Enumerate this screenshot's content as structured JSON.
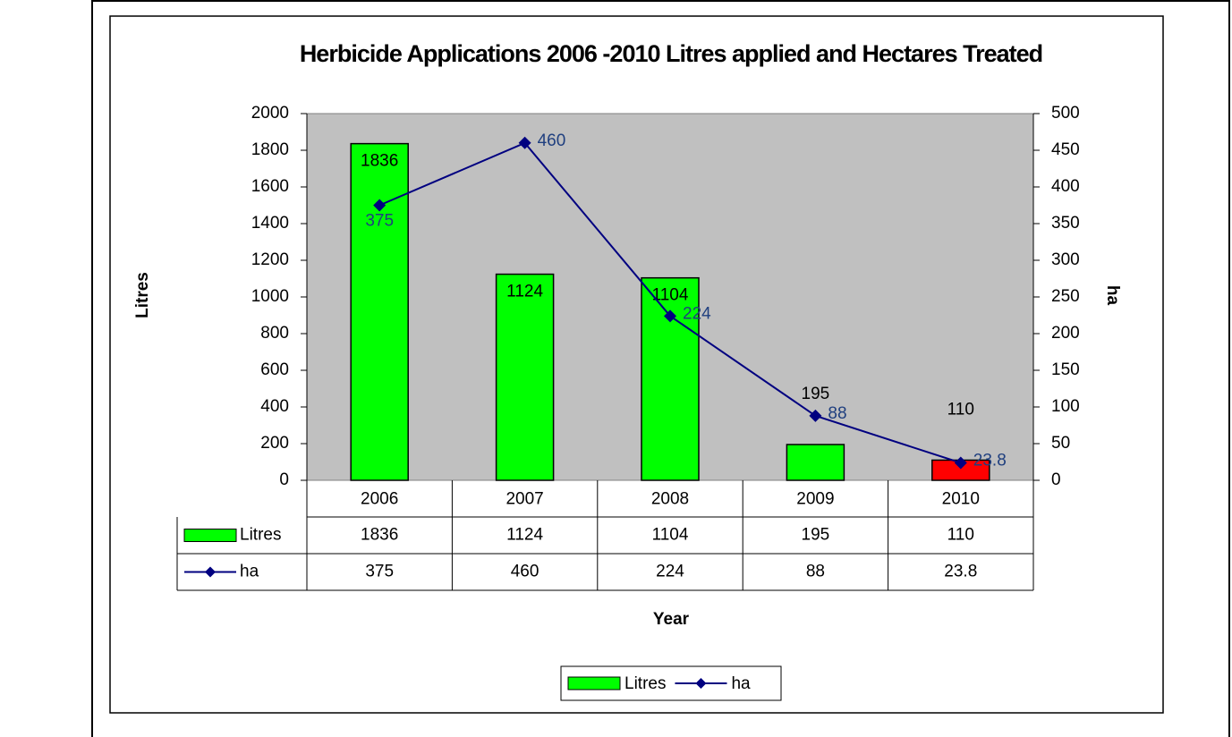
{
  "chart_data": {
    "type": "bar",
    "title": "Herbicide Applications 2006 -2010 Litres applied and Hectares Treated",
    "x_label": "Year",
    "y_label": "Litres",
    "y2_label": "ha",
    "categories": [
      "2006",
      "2007",
      "2008",
      "2009",
      "2010"
    ],
    "series": [
      {
        "name": "Litres",
        "type": "bar",
        "color": "#00ff00",
        "colors": [
          "#00ff00",
          "#00ff00",
          "#00ff00",
          "#00ff00",
          "#ff0000"
        ],
        "values": [
          1836,
          1124,
          1104,
          195,
          110
        ]
      },
      {
        "name": "ha",
        "type": "line",
        "axis": "y2",
        "color": "#000080",
        "values": [
          375,
          460,
          224,
          88,
          23.8
        ]
      }
    ],
    "ylim": [
      0,
      2000
    ],
    "yticks": [
      0,
      200,
      400,
      600,
      800,
      1000,
      1200,
      1400,
      1600,
      1800,
      2000
    ],
    "y2lim": [
      0,
      500
    ],
    "y2ticks": [
      0,
      50,
      100,
      150,
      200,
      250,
      300,
      350,
      400,
      450,
      500
    ],
    "grid": false,
    "legend": "bottom",
    "data_table": true
  }
}
